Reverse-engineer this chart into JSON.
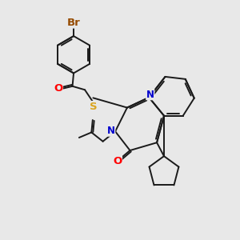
{
  "bg_color": "#e8e8e8",
  "bond_color": "#1a1a1a",
  "bond_width": 1.4,
  "atom_colors": {
    "Br": "#964B00",
    "O": "#FF0000",
    "S": "#DAA520",
    "N": "#0000CD",
    "C": "#1a1a1a"
  },
  "font_size": 8.5,
  "figsize": [
    3.0,
    3.0
  ],
  "dpi": 100
}
